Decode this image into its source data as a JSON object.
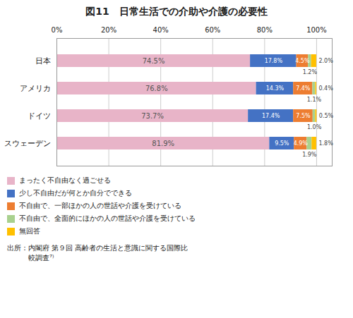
{
  "chart_data": {
    "type": "bar",
    "orientation": "horizontal",
    "stacked": true,
    "title": "図11　日常生活での介助や介護の必要性",
    "categories": [
      "日本",
      "アメリカ",
      "ドイツ",
      "スウェーデン"
    ],
    "series": [
      {
        "name": "まったく不自由なく過ごせる",
        "color": "#e8b4c8",
        "values": [
          74.5,
          76.8,
          73.7,
          81.9
        ],
        "value_labels": [
          "74.5%",
          "76.8%",
          "73.7%",
          "81.9%"
        ]
      },
      {
        "name": "少し不自由だが何とか自分でできる",
        "color": "#4472c4",
        "values": [
          17.8,
          14.3,
          17.4,
          9.5
        ],
        "value_labels": [
          "17.8%",
          "14.3%",
          "17.4%",
          "9.5%"
        ]
      },
      {
        "name": "不自由で、一部ほかの人の世話や介護を受けている",
        "color": "#ed7d31",
        "values": [
          4.5,
          7.4,
          7.5,
          4.9
        ],
        "value_labels": [
          "4.5%",
          "7.4%",
          "7.5%",
          "4.9%"
        ]
      },
      {
        "name": "不自由で、全面的にほかの人の世話や介護を受けている",
        "color": "#a9d18e",
        "values": [
          1.2,
          1.1,
          1.0,
          1.9
        ],
        "value_labels": [
          "1.2%",
          "1.1%",
          "1.0%",
          "1.9%"
        ]
      },
      {
        "name": "無回答",
        "color": "#ffc000",
        "values": [
          2.0,
          0.4,
          0.5,
          1.8
        ],
        "value_labels": [
          "2.0%",
          "0.4%",
          "0.5%",
          "1.8%"
        ]
      }
    ],
    "xlim": [
      0,
      106
    ],
    "xticks": [
      {
        "value": 0,
        "label": "0%"
      },
      {
        "value": 20,
        "label": "20%"
      },
      {
        "value": 40,
        "label": "40%"
      },
      {
        "value": 60,
        "label": "60%"
      },
      {
        "value": 80,
        "label": "80%"
      },
      {
        "value": 100,
        "label": "100%"
      }
    ],
    "grid": true,
    "data_labels": true,
    "legend": "bottom",
    "annotations": [
      "出所：内閣府 第９回 高齢者の生活と意識に関する国際比",
      "　　　較調査⁷⁾"
    ]
  }
}
